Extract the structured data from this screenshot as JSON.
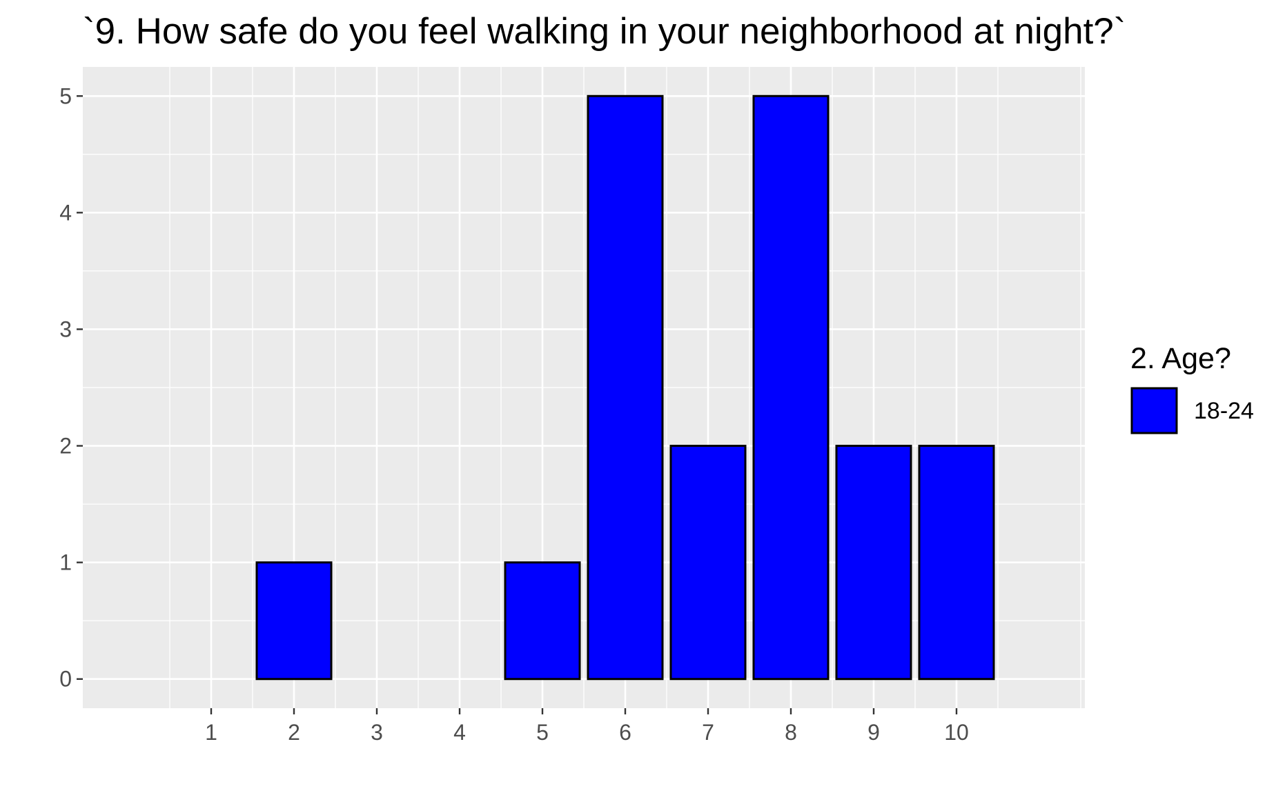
{
  "chart_data": {
    "type": "bar",
    "title": "`9. How safe do you feel walking in your neighborhood at night?`",
    "xlabel": "",
    "ylabel": "",
    "categories": [
      "1",
      "2",
      "3",
      "4",
      "5",
      "6",
      "7",
      "8",
      "9",
      "10"
    ],
    "series": [
      {
        "name": "18-24",
        "values": [
          0,
          1,
          0,
          0,
          1,
          5,
          2,
          5,
          2,
          2
        ]
      }
    ],
    "xlim": [
      -0.55,
      11.55
    ],
    "ylim": [
      -0.25,
      5.25
    ],
    "x_ticks": [
      1,
      2,
      3,
      4,
      5,
      6,
      7,
      8,
      9,
      10
    ],
    "y_ticks": [
      0,
      1,
      2,
      3,
      4,
      5
    ],
    "grid": true,
    "legend": {
      "title": "2. Age?",
      "position": "right"
    },
    "colors": {
      "bar_fill": "#0000ff",
      "bar_outline": "#000000",
      "panel_background": "#ebebeb",
      "grid_major": "#ffffff",
      "tick_text": "#4d4d4d"
    }
  }
}
